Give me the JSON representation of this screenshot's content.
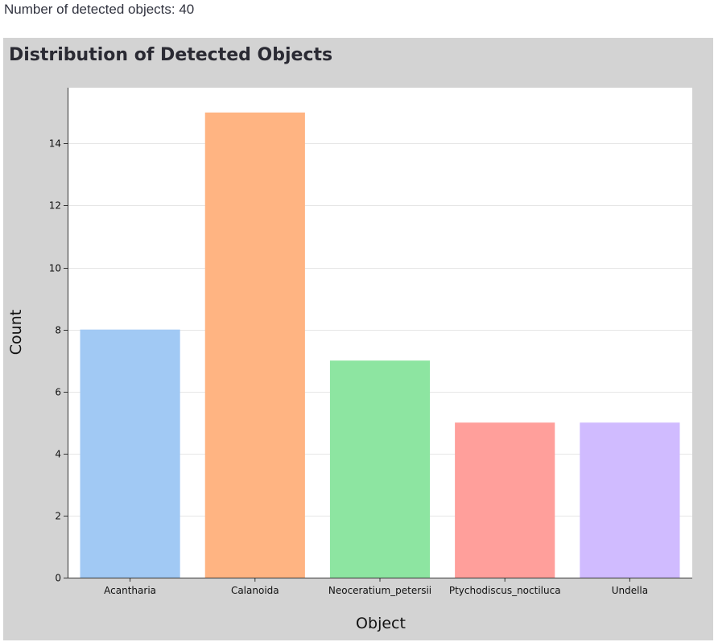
{
  "summary": {
    "text": "Number of detected objects: 40"
  },
  "chart_data": {
    "type": "bar",
    "title": "Distribution of Detected Objects",
    "xlabel": "Object",
    "ylabel": "Count",
    "categories": [
      "Acantharia",
      "Calanoida",
      "Neoceratium_petersii",
      "Ptychodiscus_noctiluca",
      "Undella"
    ],
    "values": [
      8,
      15,
      7,
      5,
      5
    ],
    "colors": [
      "#a1c9f4",
      "#ffb482",
      "#8de5a1",
      "#ff9f9b",
      "#d0bbff"
    ],
    "yticks": [
      0,
      2,
      4,
      6,
      8,
      10,
      12,
      14
    ],
    "ylim": [
      0,
      15.8
    ],
    "grid": true,
    "legend": "none"
  }
}
